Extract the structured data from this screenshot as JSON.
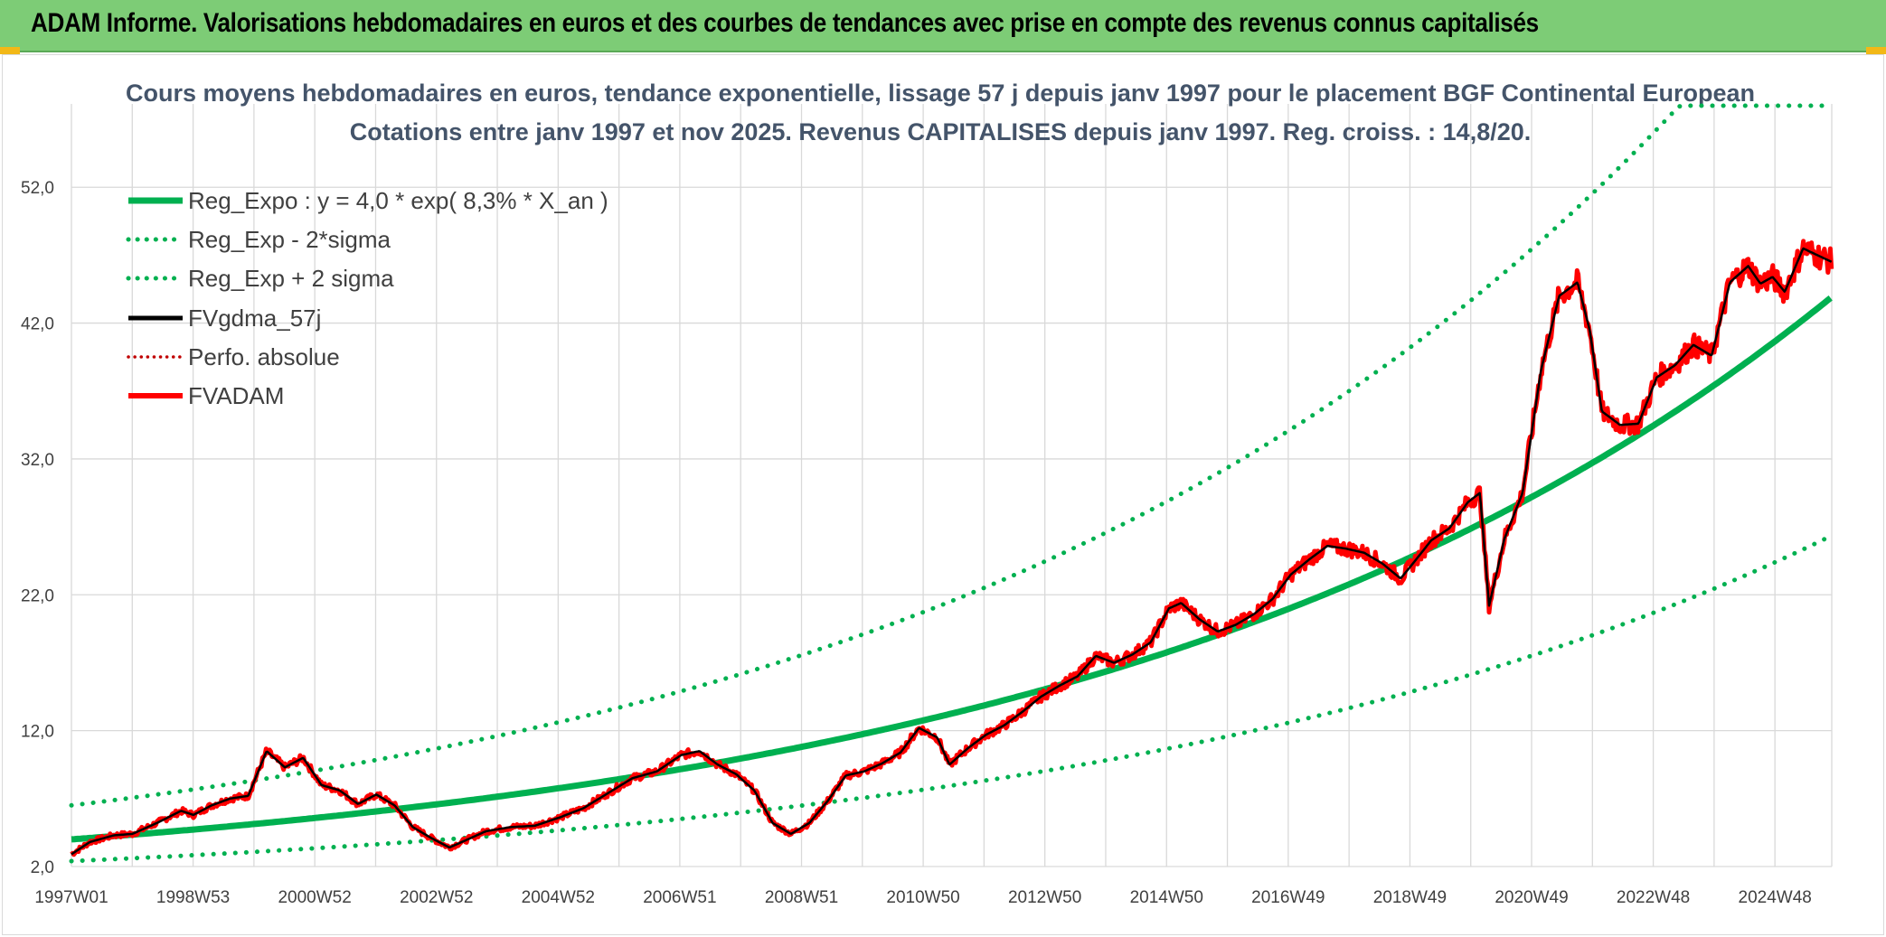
{
  "banner": {
    "title": "ADAM Informe. Valorisations hebdomadaires en euros et des courbes de tendances avec prise en compte des revenus connus capitalisés"
  },
  "colors": {
    "banner_bg": "#7dcc76",
    "reg_expo": "#00b050",
    "fvgdma": "#000000",
    "fvadam": "#ff0000",
    "perfo": "#c00000",
    "grid": "#d9d9d9",
    "title": "#44546a"
  },
  "chart_data": {
    "type": "line",
    "title": "Cours moyens hebdomadaires en euros, tendance exponentielle, lissage 57 j depuis janv 1997 pour le placement BGF Continental European",
    "subtitle": "Cotations entre janv 1997 et nov 2025. Revenus CAPITALISES depuis janv 1997. Reg. croiss. : 14,8/20.",
    "xlabel": "",
    "ylabel": "",
    "ylim": [
      2,
      58
    ],
    "y_ticks": [
      "2,0",
      "12,0",
      "22,0",
      "32,0",
      "42,0",
      "52,0"
    ],
    "x_ticks": [
      "1997W01",
      "1998W53",
      "2000W52",
      "2002W52",
      "2004W52",
      "2006W51",
      "2008W51",
      "2010W50",
      "2012W50",
      "2014W50",
      "2016W49",
      "2018W49",
      "2020W49",
      "2022W48",
      "2024W48"
    ],
    "x_range_years": [
      1997.0,
      2025.87
    ],
    "grid": true,
    "legend_position": "top-left",
    "series": [
      {
        "name": "Reg_Expo : y = 4,0 * exp( 8,3% *  X_an )",
        "style": "solid-thick",
        "color": "#00b050",
        "formula": {
          "a": 4.0,
          "b": 0.083
        }
      },
      {
        "name": "Reg_Exp - 2*sigma",
        "style": "dotted",
        "color": "#00b050",
        "formula": {
          "a": 2.4,
          "b": 0.083
        }
      },
      {
        "name": "Reg_Exp + 2 sigma",
        "style": "dotted",
        "color": "#00b050",
        "formula": {
          "a": 6.5,
          "b": 0.083
        }
      },
      {
        "name": "FVgdma_57j",
        "style": "solid",
        "color": "#000000"
      },
      {
        "name": "Perfo. absolue",
        "style": "dotted",
        "color": "#c00000"
      },
      {
        "name": "FVADAM",
        "style": "solid-thick",
        "color": "#ff0000",
        "x": [
          1997.0,
          1997.3,
          1997.7,
          1998.0,
          1998.4,
          1998.8,
          1999.0,
          1999.3,
          1999.6,
          1999.9,
          2000.2,
          2000.5,
          2000.8,
          2001.1,
          2001.4,
          2001.7,
          2002.0,
          2002.3,
          2002.6,
          2002.9,
          2003.2,
          2003.5,
          2003.8,
          2004.2,
          2004.6,
          2005.0,
          2005.4,
          2005.8,
          2006.2,
          2006.6,
          2007.0,
          2007.3,
          2007.6,
          2007.9,
          2008.2,
          2008.5,
          2008.8,
          2009.1,
          2009.4,
          2009.7,
          2010.0,
          2010.3,
          2010.6,
          2010.9,
          2011.2,
          2011.4,
          2011.7,
          2012.0,
          2012.3,
          2012.6,
          2012.9,
          2013.2,
          2013.5,
          2013.8,
          2014.1,
          2014.4,
          2014.7,
          2015.0,
          2015.2,
          2015.5,
          2015.8,
          2016.1,
          2016.4,
          2016.7,
          2017.0,
          2017.3,
          2017.6,
          2017.9,
          2018.2,
          2018.5,
          2018.8,
          2019.0,
          2019.3,
          2019.6,
          2019.9,
          2020.1,
          2020.25,
          2020.5,
          2020.8,
          2021.1,
          2021.4,
          2021.7,
          2021.9,
          2022.1,
          2022.4,
          2022.7,
          2023.0,
          2023.3,
          2023.6,
          2023.9,
          2024.2,
          2024.5,
          2024.7,
          2024.9,
          2025.1,
          2025.4,
          2025.87
        ],
        "values": [
          2.9,
          3.8,
          4.3,
          4.4,
          5.2,
          6.1,
          5.8,
          6.5,
          7.0,
          7.2,
          10.5,
          9.3,
          10.0,
          8.0,
          7.6,
          6.6,
          7.3,
          6.5,
          4.9,
          4.1,
          3.4,
          4.0,
          4.6,
          4.9,
          5.0,
          5.6,
          6.3,
          7.4,
          8.5,
          9.0,
          10.2,
          10.5,
          9.5,
          8.8,
          7.6,
          5.2,
          4.4,
          5.2,
          6.8,
          8.7,
          9.0,
          9.6,
          10.4,
          12.2,
          11.5,
          9.5,
          10.7,
          11.7,
          12.4,
          13.4,
          14.5,
          15.3,
          16.0,
          17.5,
          17.0,
          17.6,
          18.5,
          21.0,
          21.4,
          20.2,
          19.3,
          19.8,
          20.6,
          21.7,
          23.5,
          24.6,
          25.6,
          25.4,
          25.1,
          24.3,
          23.2,
          24.3,
          26.0,
          26.9,
          28.8,
          29.5,
          21.2,
          26.1,
          29.5,
          38.5,
          44.0,
          45.0,
          41.5,
          35.5,
          34.5,
          34.6,
          38.0,
          38.9,
          40.4,
          39.6,
          45.0,
          46.2,
          44.9,
          45.4,
          44.3,
          47.5,
          46.5
        ]
      }
    ]
  }
}
